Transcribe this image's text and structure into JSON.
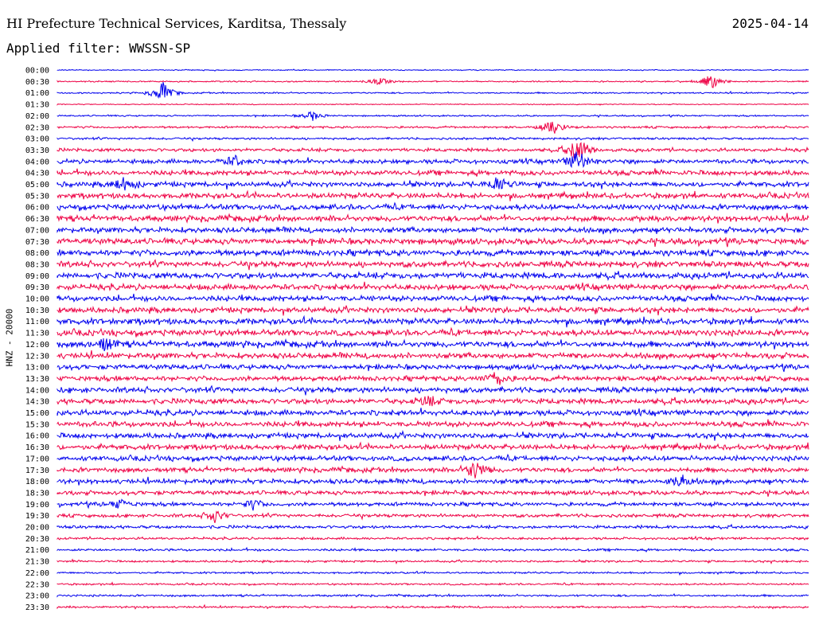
{
  "header": {
    "title": "HI Prefecture Technical Services, Karditsa, Thessaly",
    "date": "2025-04-14",
    "filter": "Applied filter: WWSSN-SP"
  },
  "channel_label": "HNZ - 20000",
  "colors": {
    "even_row": "#0000ee",
    "odd_row": "#ee0044",
    "background": "#ffffff"
  },
  "chart_data": {
    "type": "line",
    "title": "HI Prefecture Technical Services, Karditsa, Thessaly",
    "subtitle": "Applied filter: WWSSN-SP",
    "date": "2025-04-14",
    "ylabel": "HNZ - 20000",
    "xlabel": "",
    "grid": false,
    "row_labels": [
      "00:00",
      "00:30",
      "01:00",
      "01:30",
      "02:00",
      "02:30",
      "03:00",
      "03:30",
      "04:00",
      "04:30",
      "05:00",
      "05:30",
      "06:00",
      "06:30",
      "07:00",
      "07:30",
      "08:00",
      "08:30",
      "09:00",
      "09:30",
      "10:00",
      "10:30",
      "11:00",
      "11:30",
      "12:00",
      "12:30",
      "13:00",
      "13:30",
      "14:00",
      "14:30",
      "15:00",
      "15:30",
      "16:00",
      "16:30",
      "17:00",
      "17:30",
      "18:00",
      "18:30",
      "19:00",
      "19:30",
      "20:00",
      "20:30",
      "21:00",
      "21:30",
      "22:00",
      "22:30",
      "23:00",
      "23:30"
    ],
    "noise_level": [
      0.6,
      0.8,
      0.9,
      0.6,
      0.9,
      1.3,
      1.3,
      2.0,
      2.6,
      3.0,
      3.0,
      3.2,
      3.3,
      3.4,
      3.2,
      3.5,
      3.6,
      3.5,
      3.6,
      3.4,
      3.3,
      3.3,
      3.5,
      3.6,
      3.6,
      3.3,
      3.0,
      3.0,
      3.2,
      3.2,
      3.2,
      3.2,
      3.1,
      3.1,
      3.0,
      2.8,
      2.8,
      2.5,
      2.3,
      2.0,
      1.8,
      1.4,
      1.4,
      1.2,
      1.1,
      1.1,
      1.2,
      1.2
    ],
    "events": [
      {
        "row": 1,
        "minute": 26.1,
        "amp": 10
      },
      {
        "row": 1,
        "minute": 12.9,
        "amp": 5
      },
      {
        "row": 2,
        "minute": 4.2,
        "amp": 14
      },
      {
        "row": 4,
        "minute": 10.2,
        "amp": 6
      },
      {
        "row": 5,
        "minute": 19.8,
        "amp": 10
      },
      {
        "row": 7,
        "minute": 20.8,
        "amp": 18
      },
      {
        "row": 8,
        "minute": 20.8,
        "amp": 14
      },
      {
        "row": 8,
        "minute": 7.1,
        "amp": 7
      },
      {
        "row": 10,
        "minute": 2.7,
        "amp": 9
      },
      {
        "row": 10,
        "minute": 17.6,
        "amp": 9
      },
      {
        "row": 24,
        "minute": 1.9,
        "amp": 8
      },
      {
        "row": 27,
        "minute": 17.5,
        "amp": 9
      },
      {
        "row": 29,
        "minute": 14.8,
        "amp": 6
      },
      {
        "row": 35,
        "minute": 16.7,
        "amp": 12
      },
      {
        "row": 36,
        "minute": 24.9,
        "amp": 8
      },
      {
        "row": 38,
        "minute": 2.5,
        "amp": 6
      },
      {
        "row": 38,
        "minute": 7.8,
        "amp": 6
      },
      {
        "row": 39,
        "minute": 6.3,
        "amp": 8
      }
    ]
  }
}
